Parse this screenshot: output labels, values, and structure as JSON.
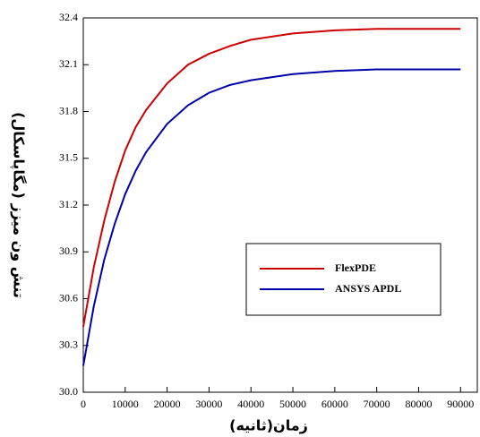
{
  "chart_data": {
    "type": "line",
    "x_label": "زمان(ثانیه)",
    "y_label": "تنش ون میزز (مگاپاسکال)",
    "x": [
      0,
      2500,
      5000,
      7500,
      10000,
      12500,
      15000,
      20000,
      25000,
      30000,
      35000,
      40000,
      50000,
      60000,
      70000,
      80000,
      90000
    ],
    "series": [
      {
        "name": "FlexPDE",
        "color": "#cc0000",
        "values": [
          30.42,
          30.8,
          31.1,
          31.35,
          31.55,
          31.7,
          31.81,
          31.98,
          32.1,
          32.17,
          32.22,
          32.26,
          32.3,
          32.32,
          32.33,
          32.33,
          32.33
        ]
      },
      {
        "name": "ANSYS APDL",
        "color": "#0000aa",
        "values": [
          30.17,
          30.55,
          30.85,
          31.08,
          31.27,
          31.42,
          31.54,
          31.72,
          31.84,
          31.92,
          31.97,
          32.0,
          32.04,
          32.06,
          32.07,
          32.07,
          32.07
        ]
      }
    ],
    "xlim": [
      0,
      94000
    ],
    "xticks": [
      0,
      10000,
      20000,
      30000,
      40000,
      50000,
      60000,
      70000,
      80000,
      90000
    ],
    "ylim": [
      30,
      32.4
    ],
    "yticks": [
      {
        "value": 30,
        "label": "30.0"
      },
      30.3,
      30.6,
      30.9,
      31.2,
      31.5,
      31.8,
      32.1,
      32.4
    ],
    "grid": false,
    "legend": "center-right"
  }
}
